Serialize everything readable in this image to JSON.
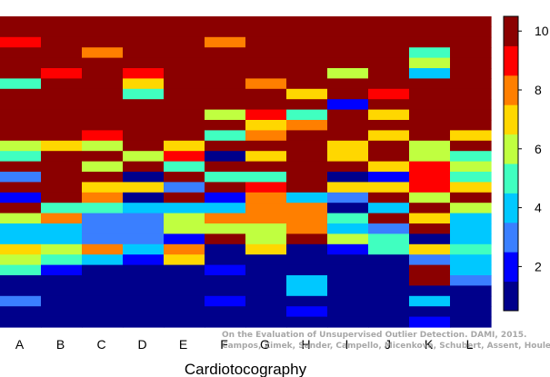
{
  "chart_data": {
    "type": "heatmap",
    "title": "",
    "xlabel": "Cardiotocography",
    "categories": [
      "A",
      "B",
      "C",
      "D",
      "E",
      "F",
      "G",
      "H",
      "I",
      "J",
      "K",
      "L"
    ],
    "rows_per_column": 30,
    "rows_order": "top-to-bottom",
    "color_scale": {
      "min": 0.5,
      "max": 10.5,
      "ticks": [
        2,
        4,
        6,
        8,
        10
      ],
      "colors": [
        "#00008B",
        "#0000FF",
        "#3A7FFF",
        "#00C8FF",
        "#40FFC0",
        "#C0FF40",
        "#FFD700",
        "#FF7F00",
        "#FF0000",
        "#8B0000"
      ]
    },
    "columns": [
      [
        10,
        10,
        9,
        10,
        10,
        10,
        5,
        10,
        10,
        10,
        10,
        10,
        6,
        5,
        10,
        3,
        10,
        2,
        10,
        6,
        4,
        4,
        7,
        6,
        5,
        1,
        1,
        3,
        1,
        1
      ],
      [
        10,
        10,
        10,
        10,
        10,
        9,
        10,
        10,
        10,
        10,
        10,
        10,
        7,
        10,
        10,
        10,
        10,
        10,
        5,
        8,
        4,
        4,
        6,
        5,
        2,
        1,
        1,
        1,
        1,
        1
      ],
      [
        10,
        10,
        10,
        8,
        10,
        10,
        10,
        10,
        10,
        10,
        10,
        9,
        6,
        10,
        6,
        10,
        7,
        8,
        5,
        3,
        3,
        3,
        8,
        4,
        1,
        1,
        1,
        1,
        1,
        1
      ],
      [
        10,
        10,
        10,
        10,
        10,
        9,
        7,
        5,
        10,
        10,
        10,
        10,
        10,
        6,
        10,
        1,
        7,
        1,
        4,
        3,
        3,
        3,
        4,
        2,
        1,
        1,
        1,
        1,
        1,
        1
      ],
      [
        10,
        10,
        10,
        10,
        10,
        10,
        10,
        10,
        10,
        10,
        10,
        10,
        7,
        9,
        5,
        10,
        3,
        10,
        4,
        6,
        6,
        2,
        8,
        7,
        1,
        1,
        1,
        1,
        1,
        1
      ],
      [
        10,
        10,
        8,
        10,
        10,
        10,
        10,
        10,
        10,
        6,
        10,
        5,
        10,
        1,
        10,
        5,
        10,
        2,
        4,
        8,
        6,
        10,
        1,
        1,
        2,
        1,
        1,
        2,
        1,
        1
      ],
      [
        10,
        10,
        10,
        10,
        10,
        10,
        8,
        10,
        10,
        9,
        7,
        8,
        10,
        7,
        10,
        5,
        9,
        8,
        8,
        8,
        6,
        6,
        7,
        1,
        1,
        1,
        1,
        1,
        1,
        1
      ],
      [
        10,
        10,
        10,
        10,
        10,
        10,
        10,
        7,
        10,
        5,
        8,
        10,
        10,
        10,
        10,
        10,
        10,
        4,
        8,
        8,
        8,
        10,
        1,
        1,
        1,
        4,
        4,
        1,
        2,
        1
      ],
      [
        10,
        10,
        10,
        10,
        10,
        6,
        10,
        10,
        2,
        10,
        10,
        10,
        7,
        7,
        10,
        1,
        7,
        3,
        1,
        5,
        4,
        6,
        2,
        1,
        1,
        1,
        1,
        1,
        1,
        1
      ],
      [
        10,
        10,
        10,
        10,
        10,
        10,
        10,
        9,
        10,
        7,
        10,
        7,
        10,
        10,
        7,
        2,
        7,
        10,
        4,
        10,
        3,
        5,
        5,
        1,
        1,
        1,
        1,
        1,
        1,
        1
      ],
      [
        10,
        10,
        10,
        5,
        6,
        4,
        10,
        10,
        10,
        10,
        10,
        10,
        6,
        6,
        9,
        9,
        9,
        6,
        10,
        7,
        10,
        1,
        7,
        3,
        10,
        10,
        1,
        4,
        1,
        2
      ],
      [
        10,
        10,
        10,
        10,
        10,
        10,
        10,
        10,
        10,
        10,
        10,
        7,
        10,
        5,
        6,
        5,
        7,
        10,
        6,
        4,
        4,
        4,
        5,
        4,
        4,
        3,
        1,
        1,
        1,
        1
      ]
    ]
  }
}
